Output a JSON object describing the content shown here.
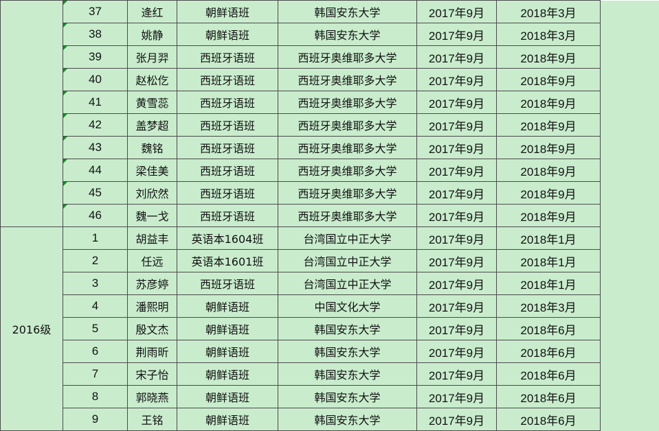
{
  "table": {
    "top_rows": [
      [
        "37",
        "逄红",
        "朝鲜语班",
        "韩国安东大学",
        "2017年9月",
        "2018年3月"
      ],
      [
        "38",
        "姚静",
        "朝鲜语班",
        "韩国安东大学",
        "2017年9月",
        "2018年3月"
      ],
      [
        "39",
        "张月羿",
        "西班牙语班",
        "西班牙奥维耶多大学",
        "2017年9月",
        "2018年9月"
      ],
      [
        "40",
        "赵松仡",
        "西班牙语班",
        "西班牙奥维耶多大学",
        "2017年9月",
        "2018年9月"
      ],
      [
        "41",
        "黄雪蕊",
        "西班牙语班",
        "西班牙奥维耶多大学",
        "2017年9月",
        "2018年9月"
      ],
      [
        "42",
        "盖梦超",
        "西班牙语班",
        "西班牙奥维耶多大学",
        "2017年9月",
        "2018年9月"
      ],
      [
        "43",
        "魏铭",
        "西班牙语班",
        "西班牙奥维耶多大学",
        "2017年9月",
        "2018年9月"
      ],
      [
        "44",
        "梁佳美",
        "西班牙语班",
        "西班牙奥维耶多大学",
        "2017年9月",
        "2018年9月"
      ],
      [
        "45",
        "刘欣然",
        "西班牙语班",
        "西班牙奥维耶多大学",
        "2017年9月",
        "2018年9月"
      ],
      [
        "46",
        "魏一戈",
        "西班牙语班",
        "西班牙奥维耶多大学",
        "2017年9月",
        "2018年9月"
      ]
    ],
    "group": {
      "label": "2016级",
      "rows": [
        [
          "1",
          "胡益丰",
          "英语本1604班",
          "台湾国立中正大学",
          "2017年9月",
          "2018年1月"
        ],
        [
          "2",
          "任远",
          "英语本1601班",
          "台湾国立中正大学",
          "2017年9月",
          "2018年1月"
        ],
        [
          "3",
          "苏彦婷",
          "西班牙语班",
          "台湾国立中正大学",
          "2017年9月",
          "2018年1月"
        ],
        [
          "4",
          "潘熙明",
          "朝鲜语班",
          "中国文化大学",
          "2017年9月",
          "2018年3月"
        ],
        [
          "5",
          "殷文杰",
          "朝鲜语班",
          "韩国安东大学",
          "2017年9月",
          "2018年6月"
        ],
        [
          "6",
          "荆雨昕",
          "朝鲜语班",
          "韩国安东大学",
          "2017年9月",
          "2018年6月"
        ],
        [
          "7",
          "宋子怡",
          "朝鲜语班",
          "韩国安东大学",
          "2017年9月",
          "2018年6月"
        ],
        [
          "8",
          "郭晓燕",
          "朝鲜语班",
          "韩国安东大学",
          "2017年9月",
          "2018年6月"
        ],
        [
          "9",
          "王铭",
          "朝鲜语班",
          "韩国安东大学",
          "2017年9月",
          "2018年6月"
        ]
      ]
    }
  }
}
